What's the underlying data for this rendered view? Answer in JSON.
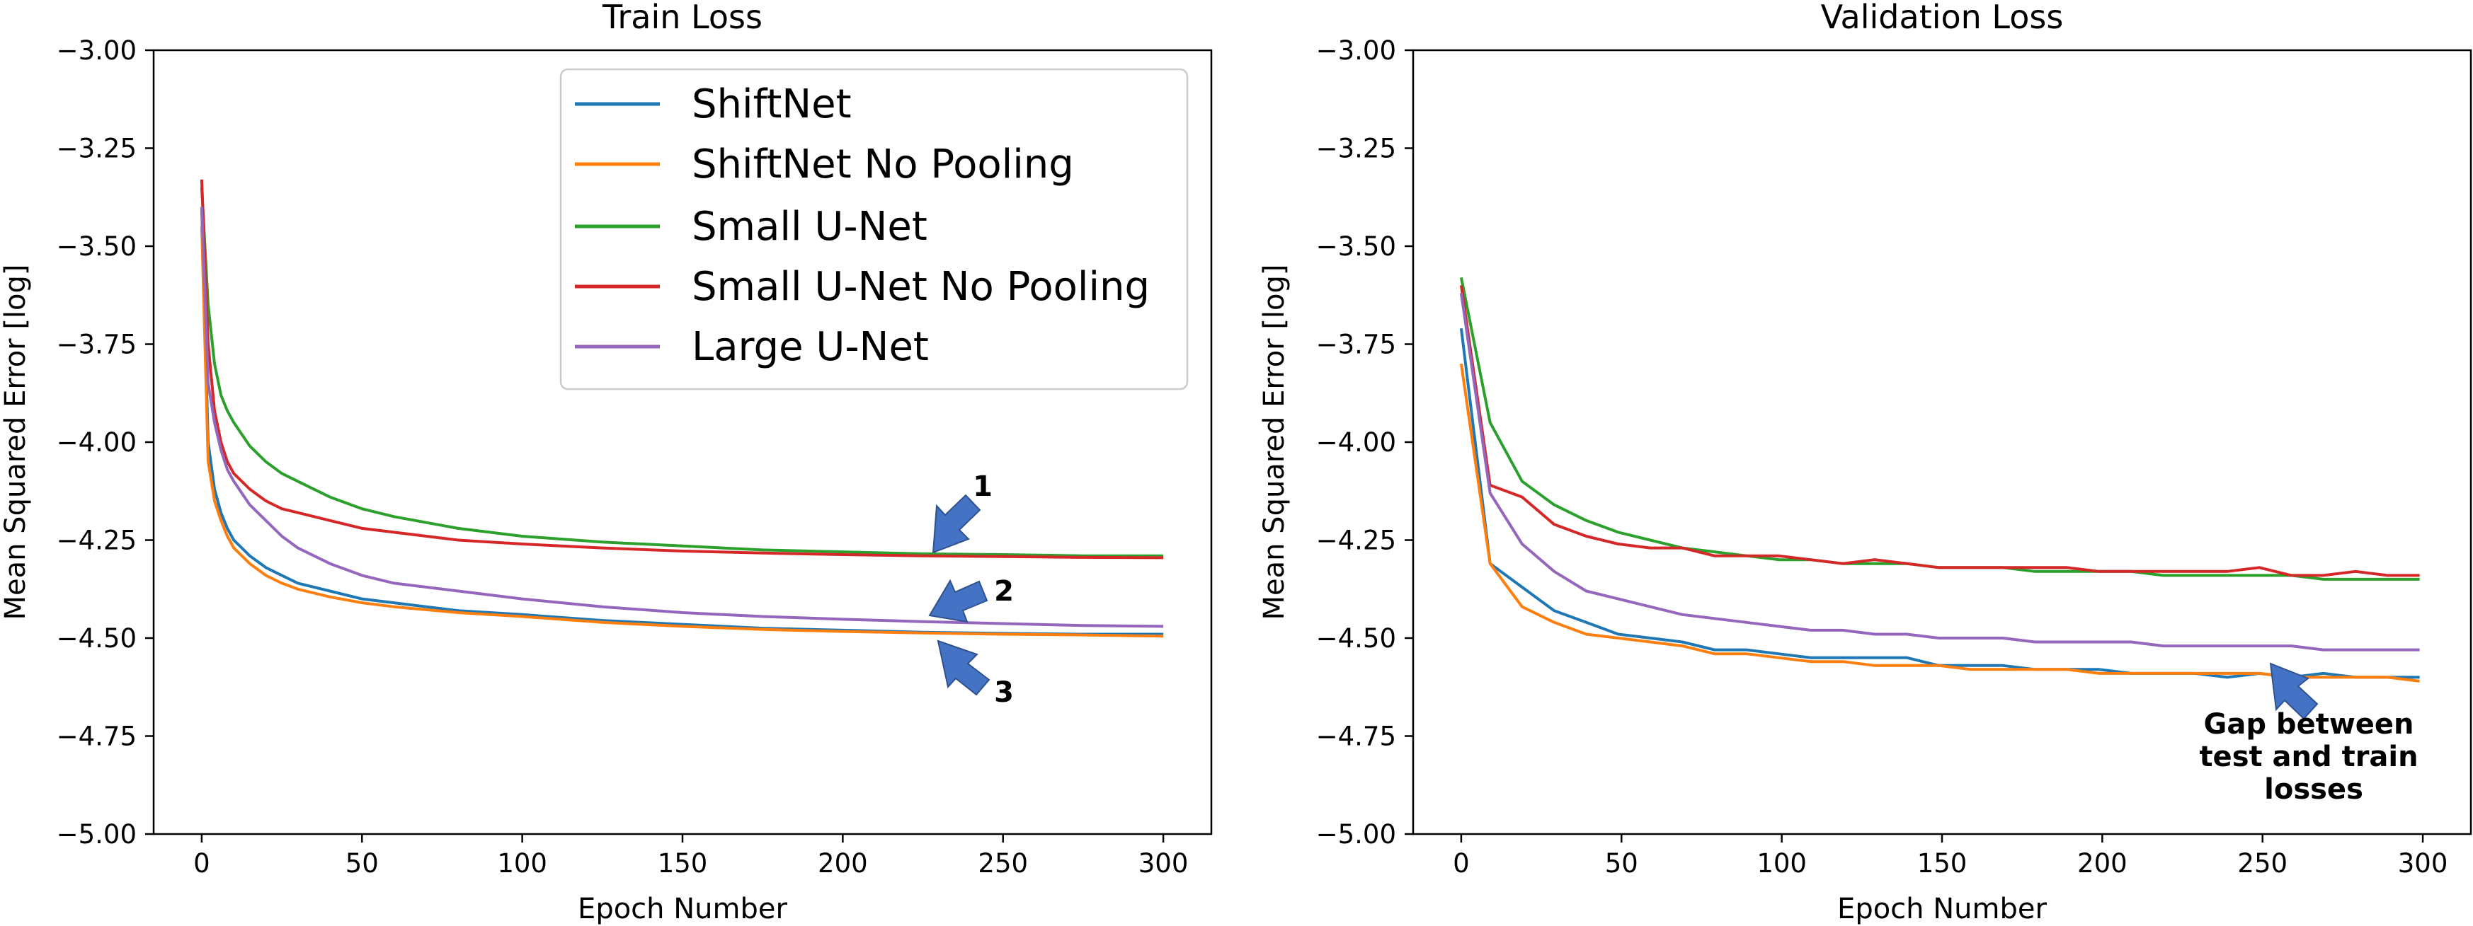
{
  "chart_data": [
    {
      "type": "line",
      "title": "Train Loss",
      "xlabel": "Epoch Number",
      "ylabel": "Mean Squared Error [log]",
      "xlim": [
        -15,
        315
      ],
      "ylim": [
        -5.0,
        -3.0
      ],
      "xticks": [
        0,
        50,
        100,
        150,
        200,
        250,
        300
      ],
      "yticks": [
        -5.0,
        -4.75,
        -4.5,
        -4.25,
        -4.0,
        -3.75,
        -3.5,
        -3.25,
        -3.0
      ],
      "ytick_labels": [
        "−5.00",
        "−4.75",
        "−4.50",
        "−4.25",
        "−4.00",
        "−3.75",
        "−3.50",
        "−3.25",
        "−3.00"
      ],
      "legend": {
        "placement": "top-right"
      },
      "series": [
        {
          "name": "ShiftNet",
          "color": "#1f77b4",
          "x": [
            0,
            2,
            4,
            6,
            8,
            10,
            15,
            20,
            25,
            30,
            40,
            50,
            60,
            80,
            100,
            125,
            150,
            175,
            200,
            225,
            250,
            275,
            300
          ],
          "y": [
            -3.4,
            -4.0,
            -4.12,
            -4.18,
            -4.22,
            -4.25,
            -4.29,
            -4.32,
            -4.34,
            -4.36,
            -4.38,
            -4.4,
            -4.41,
            -4.43,
            -4.44,
            -4.455,
            -4.465,
            -4.475,
            -4.48,
            -4.485,
            -4.488,
            -4.49,
            -4.49
          ]
        },
        {
          "name": "ShiftNet No Pooling",
          "color": "#ff7f0e",
          "x": [
            0,
            2,
            4,
            6,
            8,
            10,
            15,
            20,
            25,
            30,
            40,
            50,
            60,
            80,
            100,
            125,
            150,
            175,
            200,
            225,
            250,
            275,
            300
          ],
          "y": [
            -3.45,
            -4.05,
            -4.15,
            -4.2,
            -4.24,
            -4.27,
            -4.31,
            -4.34,
            -4.36,
            -4.375,
            -4.395,
            -4.41,
            -4.42,
            -4.435,
            -4.445,
            -4.46,
            -4.47,
            -4.478,
            -4.483,
            -4.487,
            -4.49,
            -4.492,
            -4.495
          ]
        },
        {
          "name": "Small U-Net",
          "color": "#2ca02c",
          "x": [
            0,
            2,
            4,
            6,
            8,
            10,
            15,
            20,
            25,
            30,
            40,
            50,
            60,
            80,
            100,
            125,
            150,
            175,
            200,
            225,
            250,
            275,
            300
          ],
          "y": [
            -3.35,
            -3.65,
            -3.8,
            -3.88,
            -3.92,
            -3.95,
            -4.01,
            -4.05,
            -4.08,
            -4.1,
            -4.14,
            -4.17,
            -4.19,
            -4.22,
            -4.24,
            -4.255,
            -4.265,
            -4.275,
            -4.28,
            -4.285,
            -4.287,
            -4.29,
            -4.29
          ]
        },
        {
          "name": "Small U-Net No Pooling",
          "color": "#d62728",
          "x": [
            0,
            2,
            4,
            6,
            8,
            10,
            15,
            20,
            25,
            30,
            40,
            50,
            60,
            80,
            100,
            125,
            150,
            175,
            200,
            225,
            250,
            275,
            300
          ],
          "y": [
            -3.33,
            -3.75,
            -3.92,
            -4.0,
            -4.05,
            -4.08,
            -4.12,
            -4.15,
            -4.17,
            -4.18,
            -4.2,
            -4.22,
            -4.23,
            -4.25,
            -4.26,
            -4.27,
            -4.278,
            -4.283,
            -4.287,
            -4.29,
            -4.292,
            -4.294,
            -4.295
          ]
        },
        {
          "name": "Large U-Net",
          "color": "#9467bd",
          "x": [
            0,
            2,
            4,
            6,
            8,
            10,
            15,
            20,
            25,
            30,
            40,
            50,
            60,
            80,
            100,
            125,
            150,
            175,
            200,
            225,
            250,
            275,
            300
          ],
          "y": [
            -3.4,
            -3.85,
            -3.95,
            -4.02,
            -4.07,
            -4.1,
            -4.16,
            -4.2,
            -4.24,
            -4.27,
            -4.31,
            -4.34,
            -4.36,
            -4.38,
            -4.4,
            -4.42,
            -4.435,
            -4.445,
            -4.452,
            -4.458,
            -4.463,
            -4.468,
            -4.47
          ]
        }
      ],
      "annotations": [
        {
          "label": "1",
          "target_x": 225,
          "target_y": -4.27
        },
        {
          "label": "2",
          "target_x": 225,
          "target_y": -4.43
        },
        {
          "label": "3",
          "target_x": 225,
          "target_y": -4.5
        }
      ]
    },
    {
      "type": "line",
      "title": "Validation Loss",
      "xlabel": "Epoch Number",
      "ylabel": "Mean Squared Error [log]",
      "xlim": [
        -15,
        315
      ],
      "ylim": [
        -5.0,
        -3.0
      ],
      "xticks": [
        0,
        50,
        100,
        150,
        200,
        250,
        300
      ],
      "yticks": [
        -5.0,
        -4.75,
        -4.5,
        -4.25,
        -4.0,
        -3.75,
        -3.5,
        -3.25,
        -3.0
      ],
      "ytick_labels": [
        "−5.00",
        "−4.75",
        "−4.50",
        "−4.25",
        "−4.00",
        "−3.75",
        "−3.50",
        "−3.25",
        "−3.00"
      ],
      "series": [
        {
          "name": "ShiftNet",
          "color": "#1f77b4",
          "x": [
            0,
            9,
            19,
            29,
            39,
            49,
            59,
            69,
            79,
            89,
            99,
            109,
            119,
            129,
            139,
            149,
            159,
            169,
            179,
            189,
            199,
            209,
            219,
            229,
            239,
            249,
            259,
            269,
            279,
            289,
            299
          ],
          "y": [
            -3.71,
            -4.31,
            -4.37,
            -4.43,
            -4.46,
            -4.49,
            -4.5,
            -4.51,
            -4.53,
            -4.53,
            -4.54,
            -4.55,
            -4.55,
            -4.55,
            -4.55,
            -4.57,
            -4.57,
            -4.57,
            -4.58,
            -4.58,
            -4.58,
            -4.59,
            -4.59,
            -4.59,
            -4.6,
            -4.59,
            -4.6,
            -4.59,
            -4.6,
            -4.6,
            -4.6
          ]
        },
        {
          "name": "ShiftNet No Pooling",
          "color": "#ff7f0e",
          "x": [
            0,
            9,
            19,
            29,
            39,
            49,
            59,
            69,
            79,
            89,
            99,
            109,
            119,
            129,
            139,
            149,
            159,
            169,
            179,
            189,
            199,
            209,
            219,
            229,
            239,
            249,
            259,
            269,
            279,
            289,
            299
          ],
          "y": [
            -3.8,
            -4.31,
            -4.42,
            -4.46,
            -4.49,
            -4.5,
            -4.51,
            -4.52,
            -4.54,
            -4.54,
            -4.55,
            -4.56,
            -4.56,
            -4.57,
            -4.57,
            -4.57,
            -4.58,
            -4.58,
            -4.58,
            -4.58,
            -4.59,
            -4.59,
            -4.59,
            -4.59,
            -4.59,
            -4.59,
            -4.6,
            -4.6,
            -4.6,
            -4.6,
            -4.61
          ]
        },
        {
          "name": "Small U-Net",
          "color": "#2ca02c",
          "x": [
            0,
            9,
            19,
            29,
            39,
            49,
            59,
            69,
            79,
            89,
            99,
            109,
            119,
            129,
            139,
            149,
            159,
            169,
            179,
            189,
            199,
            209,
            219,
            229,
            239,
            249,
            259,
            269,
            279,
            289,
            299
          ],
          "y": [
            -3.58,
            -3.95,
            -4.1,
            -4.16,
            -4.2,
            -4.23,
            -4.25,
            -4.27,
            -4.28,
            -4.29,
            -4.3,
            -4.3,
            -4.31,
            -4.31,
            -4.31,
            -4.32,
            -4.32,
            -4.32,
            -4.33,
            -4.33,
            -4.33,
            -4.33,
            -4.34,
            -4.34,
            -4.34,
            -4.34,
            -4.34,
            -4.35,
            -4.35,
            -4.35,
            -4.35
          ]
        },
        {
          "name": "Small U-Net No Pooling",
          "color": "#d62728",
          "x": [
            0,
            9,
            19,
            29,
            39,
            49,
            59,
            69,
            79,
            89,
            99,
            109,
            119,
            129,
            139,
            149,
            159,
            169,
            179,
            189,
            199,
            209,
            219,
            229,
            239,
            249,
            259,
            269,
            279,
            289,
            299
          ],
          "y": [
            -3.6,
            -4.11,
            -4.14,
            -4.21,
            -4.24,
            -4.26,
            -4.27,
            -4.27,
            -4.29,
            -4.29,
            -4.29,
            -4.3,
            -4.31,
            -4.3,
            -4.31,
            -4.32,
            -4.32,
            -4.32,
            -4.32,
            -4.32,
            -4.33,
            -4.33,
            -4.33,
            -4.33,
            -4.33,
            -4.32,
            -4.34,
            -4.34,
            -4.33,
            -4.34,
            -4.34
          ]
        },
        {
          "name": "Large U-Net",
          "color": "#9467bd",
          "x": [
            0,
            9,
            19,
            29,
            39,
            49,
            59,
            69,
            79,
            89,
            99,
            109,
            119,
            129,
            139,
            149,
            159,
            169,
            179,
            189,
            199,
            209,
            219,
            229,
            239,
            249,
            259,
            269,
            279,
            289,
            299
          ],
          "y": [
            -3.62,
            -4.13,
            -4.26,
            -4.33,
            -4.38,
            -4.4,
            -4.42,
            -4.44,
            -4.45,
            -4.46,
            -4.47,
            -4.48,
            -4.48,
            -4.49,
            -4.49,
            -4.5,
            -4.5,
            -4.5,
            -4.51,
            -4.51,
            -4.51,
            -4.51,
            -4.52,
            -4.52,
            -4.52,
            -4.52,
            -4.52,
            -4.53,
            -4.53,
            -4.53,
            -4.53
          ]
        }
      ],
      "annotations": [
        {
          "label": "Gap between test and train losses",
          "lines": [
            "Gap between",
            "test and train",
            "losses"
          ],
          "target_x": 250,
          "target_y": -4.58
        }
      ]
    }
  ]
}
